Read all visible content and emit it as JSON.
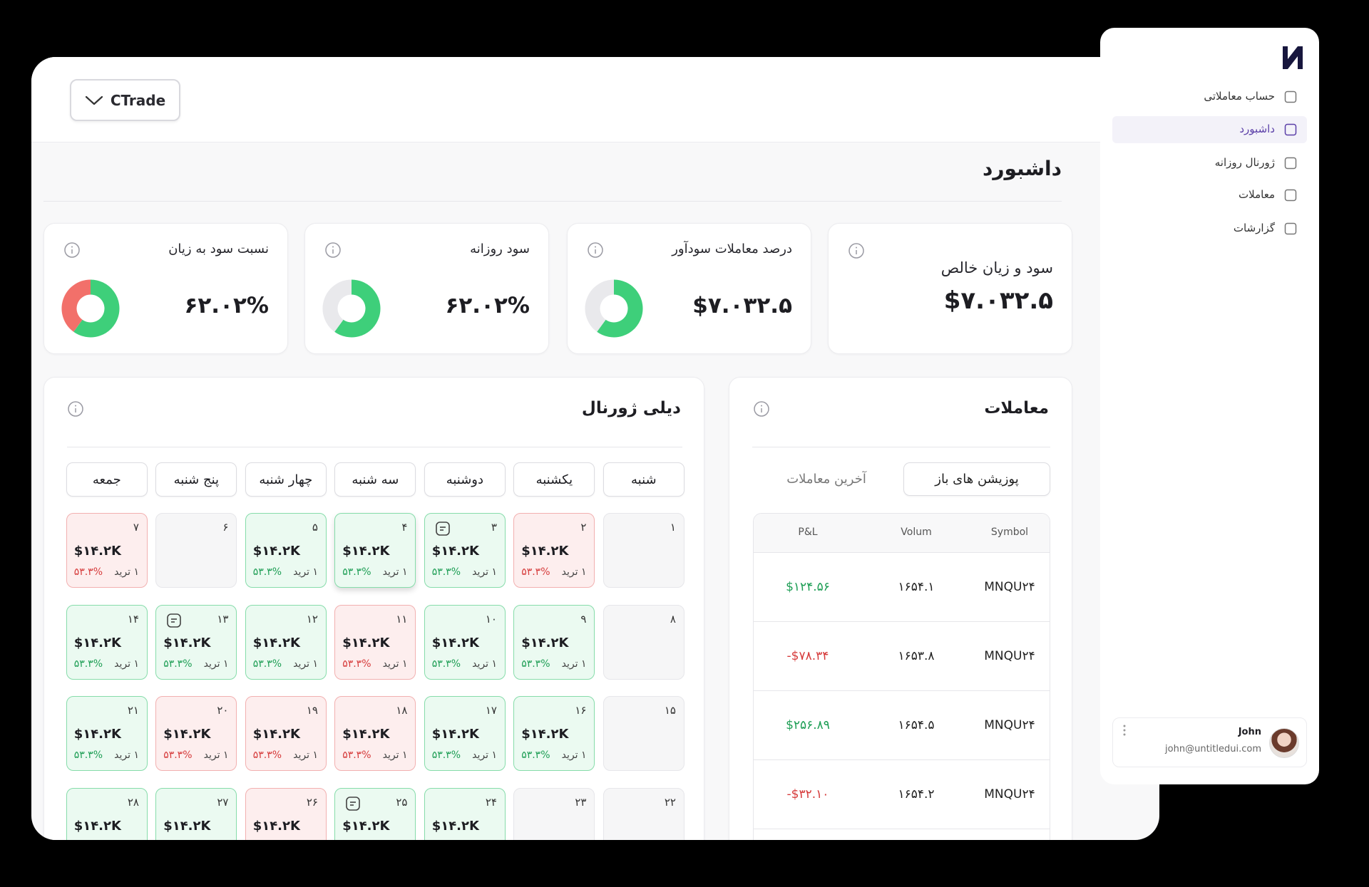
{
  "sidebar": {
    "nav": [
      {
        "label": "حساب معاملاتی"
      },
      {
        "label": "داشبورد"
      },
      {
        "label": "ژورنال روزانه"
      },
      {
        "label": "معاملات"
      },
      {
        "label": "گزارشات"
      }
    ],
    "active": 1,
    "user": {
      "name": "John",
      "email": "john@untitledui.com"
    }
  },
  "header": {
    "account": "CTrade"
  },
  "page_title": "داشبورد",
  "stats": [
    {
      "title": "سود و زیان خالص",
      "value": "$۷.۰۳۲.۵"
    },
    {
      "title": "درصد معاملات سودآور",
      "value": "$۷.۰۳۲.۵",
      "donut": [
        {
          "value": 60,
          "color": "#3ecf7a"
        },
        {
          "value": 40,
          "color": "#e9e9ec"
        }
      ]
    },
    {
      "title": "سود روزانه",
      "value": "۶۲.۰۲%",
      "donut": [
        {
          "value": 60,
          "color": "#3ecf7a"
        },
        {
          "value": 40,
          "color": "#e9e9ec"
        }
      ]
    },
    {
      "title": "نسبت سود به زیان",
      "value": "۶۲.۰۲%",
      "donut": [
        {
          "value": 60,
          "color": "#3ecf7a"
        },
        {
          "value": 40,
          "color": "#f2706a"
        }
      ]
    }
  ],
  "journal": {
    "title": "دیلی ژورنال",
    "weekdays": [
      "شنبه",
      "یکشنبه",
      "دوشنبه",
      "سه شنبه",
      "چهار شنبه",
      "پنج شنبه",
      "جمعه"
    ],
    "days": [
      {
        "day": "۱",
        "status": "empty"
      },
      {
        "day": "۲",
        "status": "loss",
        "amount": "$۱۴.۲K",
        "trades": "۱ ترید",
        "pct": "۵۳.۳%"
      },
      {
        "day": "۳",
        "status": "win",
        "amount": "$۱۴.۲K",
        "trades": "۱ ترید",
        "pct": "۵۳.۳%",
        "note": true
      },
      {
        "day": "۴",
        "status": "win",
        "amount": "$۱۴.۲K",
        "trades": "۱ ترید",
        "pct": "۵۳.۳%",
        "selected": true
      },
      {
        "day": "۵",
        "status": "win",
        "amount": "$۱۴.۲K",
        "trades": "۱ ترید",
        "pct": "۵۳.۳%"
      },
      {
        "day": "۶",
        "status": "empty"
      },
      {
        "day": "۷",
        "status": "loss",
        "amount": "$۱۴.۲K",
        "trades": "۱ ترید",
        "pct": "۵۳.۳%"
      },
      {
        "day": "۸",
        "status": "empty"
      },
      {
        "day": "۹",
        "status": "win",
        "amount": "$۱۴.۲K",
        "trades": "۱ ترید",
        "pct": "۵۳.۳%"
      },
      {
        "day": "۱۰",
        "status": "win",
        "amount": "$۱۴.۲K",
        "trades": "۱ ترید",
        "pct": "۵۳.۳%"
      },
      {
        "day": "۱۱",
        "status": "loss",
        "amount": "$۱۴.۲K",
        "trades": "۱ ترید",
        "pct": "۵۳.۳%"
      },
      {
        "day": "۱۲",
        "status": "win",
        "amount": "$۱۴.۲K",
        "trades": "۱ ترید",
        "pct": "۵۳.۳%"
      },
      {
        "day": "۱۳",
        "status": "win",
        "amount": "$۱۴.۲K",
        "trades": "۱ ترید",
        "pct": "۵۳.۳%",
        "note": true
      },
      {
        "day": "۱۴",
        "status": "win",
        "amount": "$۱۴.۲K",
        "trades": "۱ ترید",
        "pct": "۵۳.۳%"
      },
      {
        "day": "۱۵",
        "status": "empty"
      },
      {
        "day": "۱۶",
        "status": "win",
        "amount": "$۱۴.۲K",
        "trades": "۱ ترید",
        "pct": "۵۳.۳%"
      },
      {
        "day": "۱۷",
        "status": "win",
        "amount": "$۱۴.۲K",
        "trades": "۱ ترید",
        "pct": "۵۳.۳%"
      },
      {
        "day": "۱۸",
        "status": "loss",
        "amount": "$۱۴.۲K",
        "trades": "۱ ترید",
        "pct": "۵۳.۳%"
      },
      {
        "day": "۱۹",
        "status": "loss",
        "amount": "$۱۴.۲K",
        "trades": "۱ ترید",
        "pct": "۵۳.۳%"
      },
      {
        "day": "۲۰",
        "status": "loss",
        "amount": "$۱۴.۲K",
        "trades": "۱ ترید",
        "pct": "۵۳.۳%"
      },
      {
        "day": "۲۱",
        "status": "win",
        "amount": "$۱۴.۲K",
        "trades": "۱ ترید",
        "pct": "۵۳.۳%"
      },
      {
        "day": "۲۲",
        "status": "empty"
      },
      {
        "day": "۲۳",
        "status": "empty"
      },
      {
        "day": "۲۴",
        "status": "win",
        "amount": "$۱۴.۲K"
      },
      {
        "day": "۲۵",
        "status": "win",
        "amount": "$۱۴.۲K",
        "note": true
      },
      {
        "day": "۲۶",
        "status": "loss",
        "amount": "$۱۴.۲K"
      },
      {
        "day": "۲۷",
        "status": "win",
        "amount": "$۱۴.۲K"
      },
      {
        "day": "۲۸",
        "status": "win",
        "amount": "$۱۴.۲K"
      }
    ]
  },
  "trades": {
    "title": "معاملات",
    "tabs": [
      "پوزیشن های باز",
      "آخرین معاملات"
    ],
    "active_tab": 0,
    "columns": [
      "Symbol",
      "Volum",
      "P&L"
    ],
    "rows": [
      [
        "MNQU۲۴",
        "۱۶۵۴.۱",
        "$۱۲۴.۵۶"
      ],
      [
        "MNQU۲۴",
        "۱۶۵۳.۸",
        "-$۷۸.۳۴"
      ],
      [
        "MNQU۲۴",
        "۱۶۵۴.۵",
        "$۲۵۶.۸۹"
      ],
      [
        "MNQU۲۴",
        "۱۶۵۴.۲",
        "-$۳۲.۱۰"
      ]
    ]
  }
}
